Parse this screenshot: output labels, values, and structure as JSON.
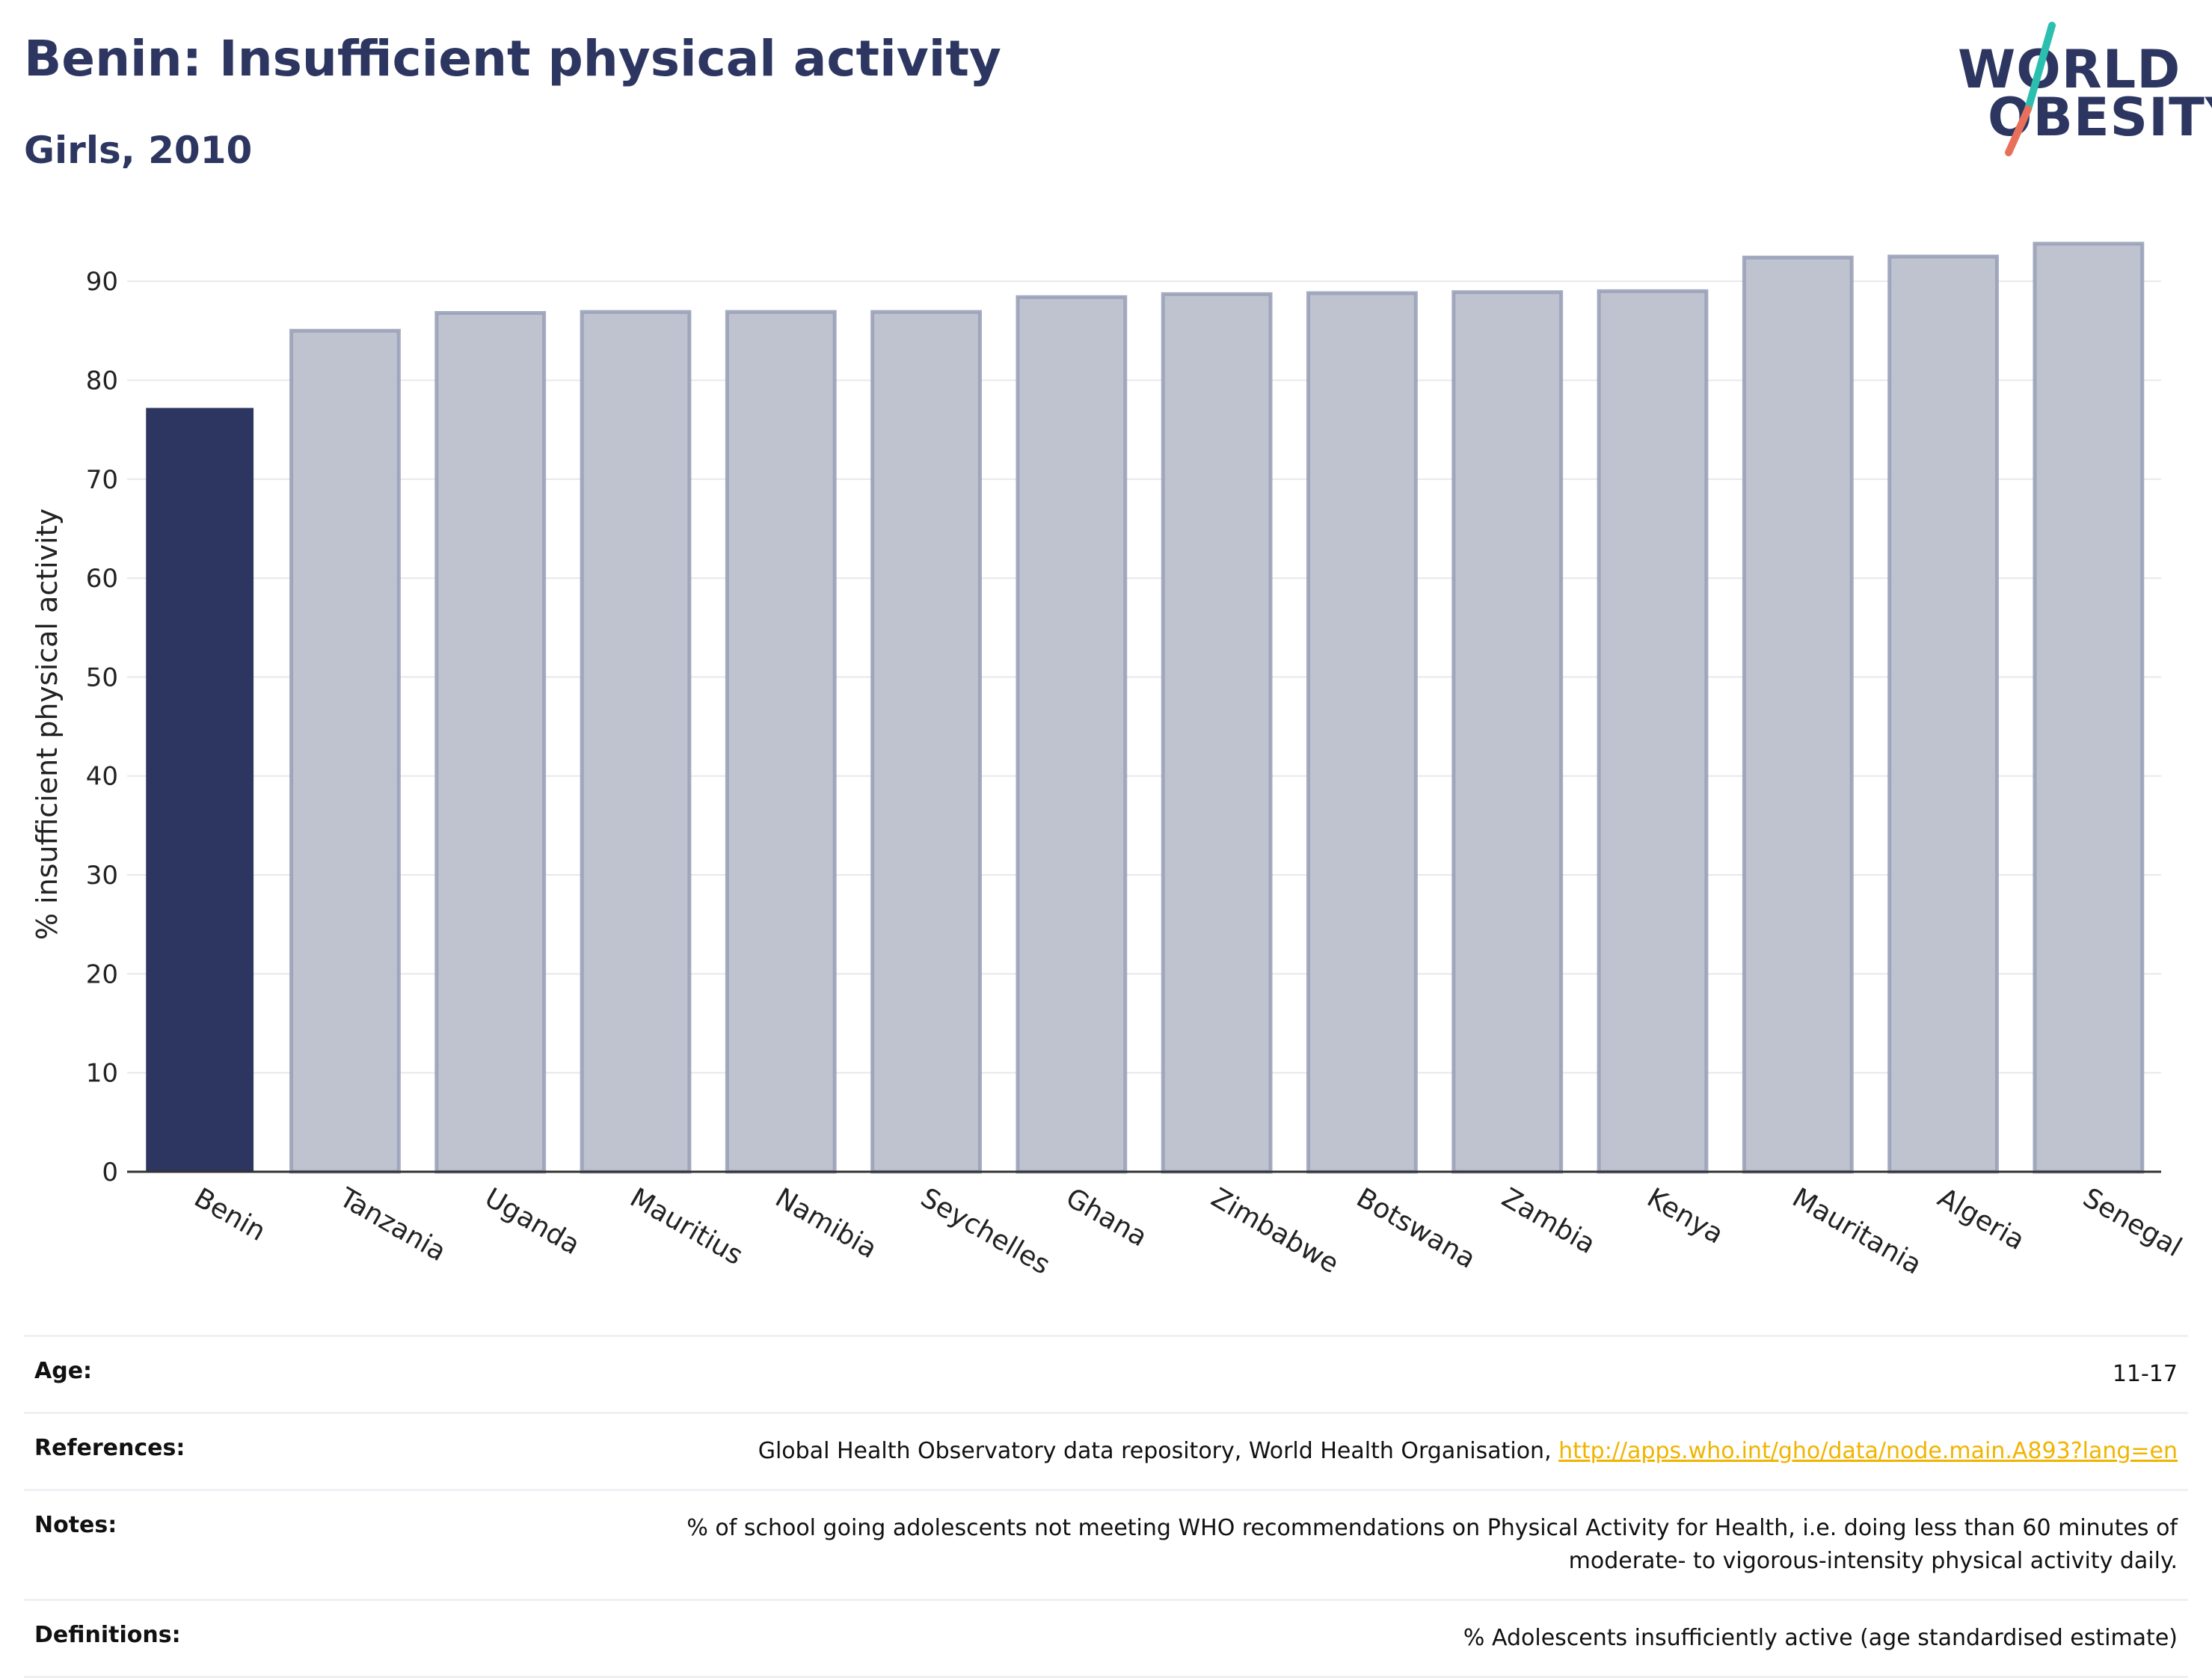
{
  "title": "Benin: Insufficient physical activity",
  "subtitle": "Girls, 2010",
  "logo": {
    "line1": "WORLD",
    "line2": "OBESITY"
  },
  "colors": {
    "highlight_bar": "#2c3660",
    "other_bar_fill": "#bfc3cf",
    "other_bar_border": "#9aa1b8",
    "grid": "#e8e8ec",
    "axis": "#333333",
    "logo_slash_top": "#2bbfb0",
    "logo_slash_bottom": "#e8705a",
    "link": "#f0b400"
  },
  "chart_data": {
    "type": "bar",
    "title": "",
    "ylabel": "% insufficient physical activity",
    "xlabel": "",
    "ylim": [
      0,
      95
    ],
    "yticks": [
      0,
      10,
      20,
      30,
      40,
      50,
      60,
      70,
      80,
      90
    ],
    "grid": true,
    "highlight": "Benin",
    "categories": [
      "Benin",
      "Tanzania",
      "Uganda",
      "Mauritius",
      "Namibia",
      "Seychelles",
      "Ghana",
      "Zimbabwe",
      "Botswana",
      "Zambia",
      "Kenya",
      "Mauritania",
      "Algeria",
      "Senegal"
    ],
    "values": [
      77.2,
      85.0,
      86.8,
      86.9,
      86.9,
      86.9,
      88.4,
      88.7,
      88.8,
      88.9,
      89.0,
      92.4,
      92.5,
      93.8
    ]
  },
  "meta": {
    "age_label": "Age:",
    "age_value": "11-17",
    "references_label": "References:",
    "references_text": "Global Health Observatory data repository, World Health Organisation, ",
    "references_link": "http://apps.who.int/gho/data/node.main.A893?lang=en",
    "notes_label": "Notes:",
    "notes_line1": "% of school going adolescents not meeting WHO recommendations on Physical Activity for Health, i.e. doing less than 60 minutes of",
    "notes_line2": "moderate- to vigorous-intensity physical activity daily.",
    "definitions_label": "Definitions:",
    "definitions_value": "% Adolescents insufficiently active (age standardised estimate)"
  }
}
